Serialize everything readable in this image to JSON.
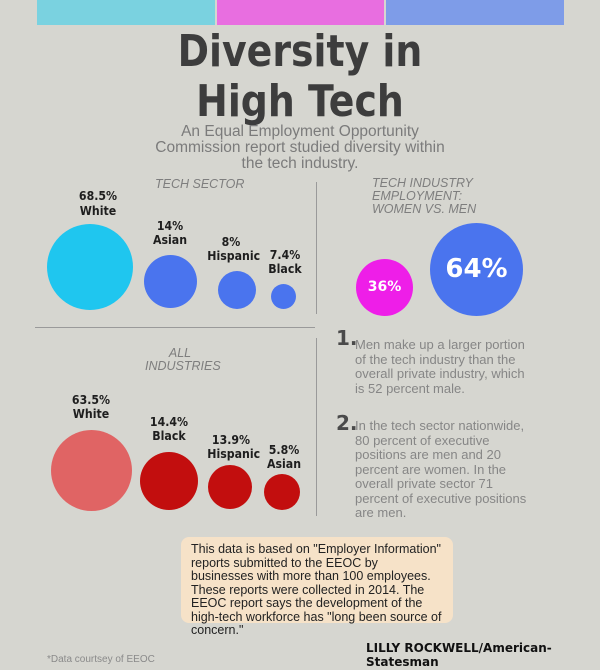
{
  "title_line1": "Diversity in",
  "title_line2": "High Tech",
  "subtitle": "An Equal Employment Opportunity Commission report studied diversity within the tech industry.",
  "tech_sector": {
    "label": "TECH SECTOR",
    "items": [
      {
        "pct": "68.5%",
        "name": "White",
        "value": 68.5,
        "color": "#1fc6ef"
      },
      {
        "pct": "14%",
        "name": "Asian",
        "value": 14,
        "color": "#4a74ee"
      },
      {
        "pct": "8%",
        "name": "Hispanic",
        "value": 8,
        "color": "#4a74ee"
      },
      {
        "pct": "7.4%",
        "name": "Black",
        "value": 7.4,
        "color": "#4a74ee"
      }
    ]
  },
  "all_industries": {
    "label_line1": "ALL",
    "label_line2": "INDUSTRIES",
    "items": [
      {
        "pct": "63.5%",
        "name": "White",
        "value": 63.5,
        "color": "#e06464"
      },
      {
        "pct": "14.4%",
        "name": "Black",
        "value": 14.4,
        "color": "#c20e0e"
      },
      {
        "pct": "13.9%",
        "name": "Hispanic",
        "value": 13.9,
        "color": "#c20e0e"
      },
      {
        "pct": "5.8%",
        "name": "Asian",
        "value": 5.8,
        "color": "#c20e0e"
      }
    ]
  },
  "gender": {
    "label_line1": "TECH INDUSTRY",
    "label_line2": "EMPLOYMENT:",
    "label_line3": "WOMEN VS. MEN",
    "women": {
      "pct": "36%",
      "value": 36,
      "color": "#ee1ee8"
    },
    "men": {
      "pct": "64%",
      "value": 64,
      "color": "#4a74ee"
    }
  },
  "notes": [
    {
      "num": "1.",
      "text": "Men make up a larger portion of the tech industry than the overall private industry, which is 52 percent male."
    },
    {
      "num": "2.",
      "text": "In the tech sector nationwide, 80 percent of executive positions are men and 20 percent are women. In the overall private sector 71 percent of executive positions are men."
    }
  ],
  "infobox": "This data is based on \"Employer Information\" reports submitted to the EEOC by businesses with more than 100 employees. These reports were collected in 2014. The EEOC report says the development of the high-tech workforce has \"long been source of concern.\"",
  "credit": "LILLY ROCKWELL/American-Statesman",
  "source": "*Data courtsey of EEOC",
  "colors": {
    "bar1": "#7ad2e0",
    "bar2": "#e86ee0",
    "bar3": "#7e9ce8"
  }
}
